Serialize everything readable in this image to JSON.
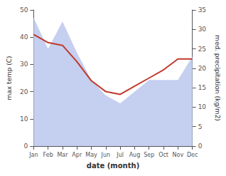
{
  "chart_data": {
    "type": "line",
    "categories": [
      "Jan",
      "Feb",
      "Mar",
      "Apr",
      "May",
      "Jun",
      "Jul",
      "Aug",
      "Sep",
      "Oct",
      "Nov",
      "Dec"
    ],
    "series": [
      {
        "type": "area",
        "color": "#c5cff0",
        "axis": "y2",
        "values": [
          33,
          25,
          32,
          24,
          17,
          13,
          11,
          14,
          17,
          17,
          17,
          23
        ]
      },
      {
        "type": "line",
        "color": "#c0392b",
        "values": [
          41,
          38,
          37,
          31,
          24,
          20,
          19,
          22,
          25,
          28,
          32,
          32
        ]
      }
    ],
    "xlabel": "date (month)",
    "ylabel": "max temp (C)",
    "y2label": "med. precipitation (kg/m2)",
    "ylim": [
      0,
      50
    ],
    "yticks": [
      0,
      10,
      20,
      30,
      40,
      50
    ],
    "y2lim": [
      0,
      35
    ],
    "y2ticks": [
      0,
      5,
      10,
      15,
      20,
      25,
      30,
      35
    ],
    "grid": false
  }
}
